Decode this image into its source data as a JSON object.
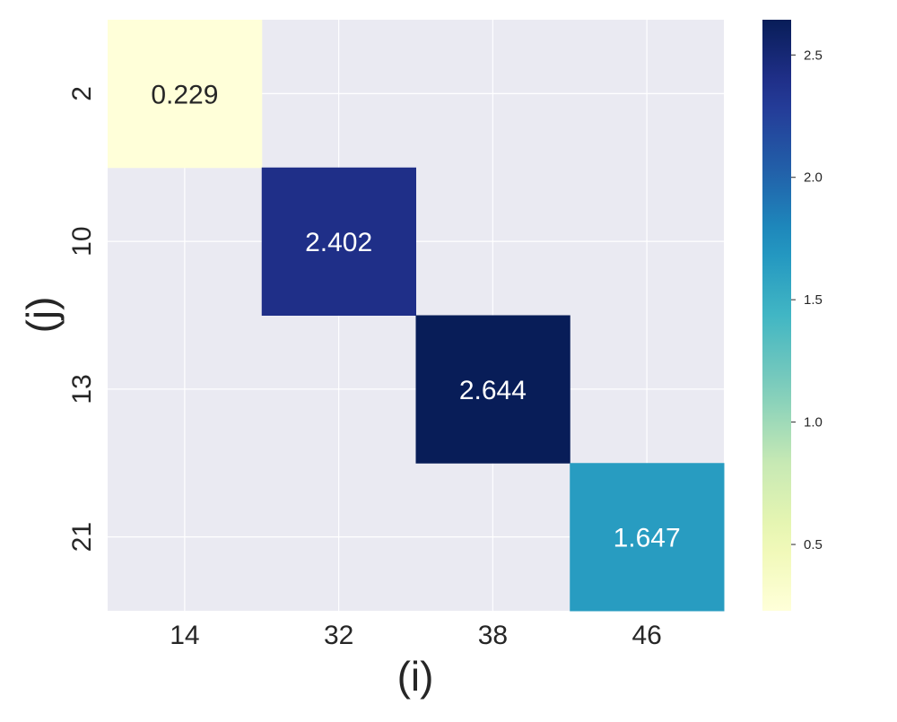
{
  "chart_data": {
    "type": "heatmap",
    "xlabel": "(i)",
    "ylabel": "(j)",
    "x_categories": [
      "14",
      "32",
      "38",
      "46"
    ],
    "y_categories": [
      "2",
      "10",
      "13",
      "21"
    ],
    "cells": [
      {
        "x": "14",
        "y": "2",
        "value": 0.229,
        "label": "0.229"
      },
      {
        "x": "32",
        "y": "10",
        "value": 2.402,
        "label": "2.402"
      },
      {
        "x": "38",
        "y": "13",
        "value": 2.644,
        "label": "2.644"
      },
      {
        "x": "46",
        "y": "21",
        "value": 1.647,
        "label": "1.647"
      }
    ],
    "missing_color": "#eaeaf2",
    "grid": true,
    "colormap": "YlGnBu",
    "colorbar": {
      "vmin": 0.229,
      "vmax": 2.644,
      "ticks": [
        0.5,
        1.0,
        1.5,
        2.0,
        2.5
      ],
      "tick_labels": [
        "0.5",
        "1.0",
        "1.5",
        "2.0",
        "2.5"
      ],
      "placement": "right"
    }
  }
}
